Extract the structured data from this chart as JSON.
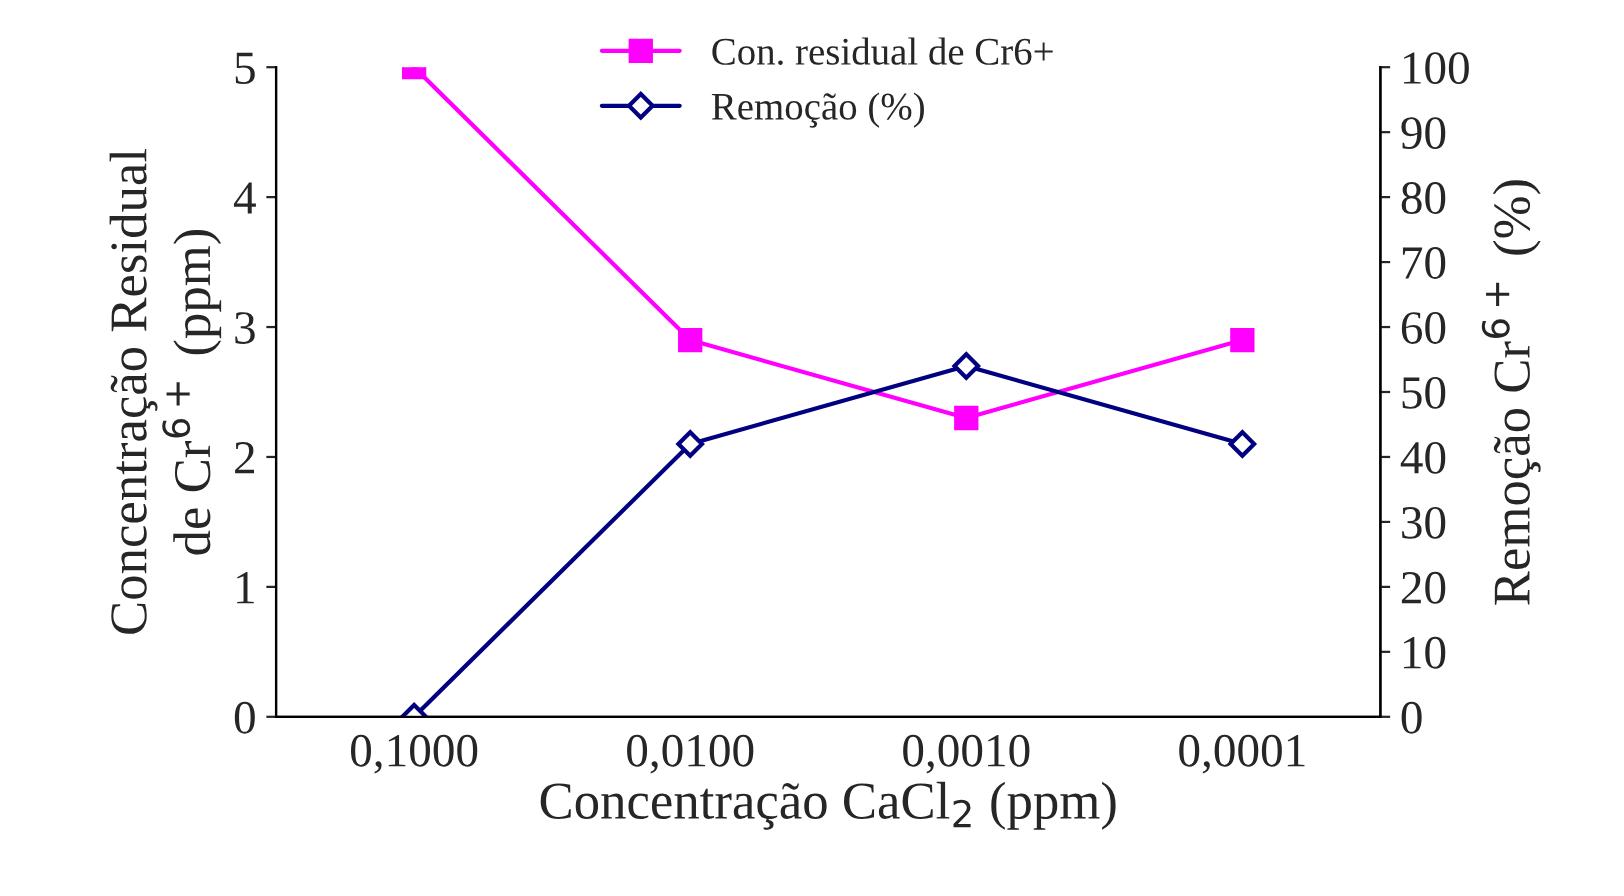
{
  "chart_data": {
    "type": "line",
    "categories": [
      "0,1000",
      "0,0100",
      "0,0010",
      "0,0001"
    ],
    "xlabel": "Concentração CaCl$_{2}$ (ppm)",
    "ylabel": "Concentração Residual\nde Cr$^{6+}$ (ppm)",
    "y2label": "Remoção Cr$^{6+}$ (%)",
    "series": [
      {
        "name": "Con. residual de Cr6+",
        "color": "#ff00ff",
        "marker": "square",
        "values": [
          5,
          2.9,
          2.3,
          2.9
        ]
      },
      {
        "name": "Remoção (%)",
        "color": "#000080",
        "marker": "diamond",
        "axis": "y2",
        "values": [
          0,
          42,
          54,
          42
        ]
      }
    ],
    "ylim": [
      0,
      5
    ],
    "yticks": [
      0,
      1,
      2,
      3,
      4,
      5
    ],
    "y2lim": [
      0,
      100
    ],
    "y2ticks": [
      0,
      10,
      20,
      30,
      40,
      50,
      60,
      70,
      80,
      90,
      100
    ],
    "grid": false,
    "legend": "top"
  }
}
